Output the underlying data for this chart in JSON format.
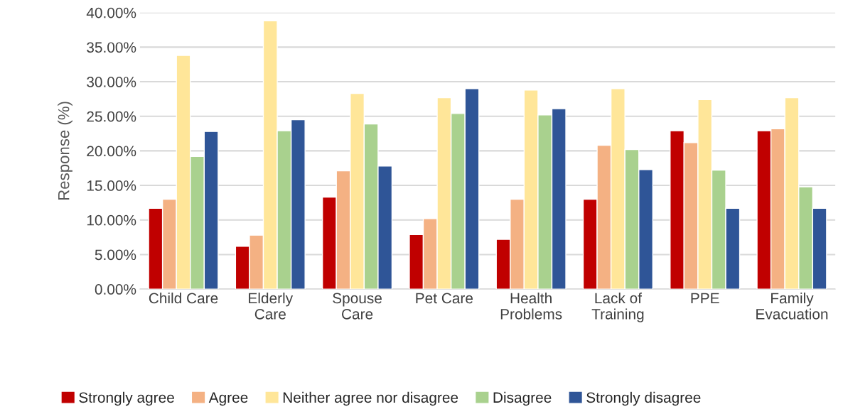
{
  "chart_data": {
    "type": "bar",
    "ylabel": "Response (%)",
    "categories": [
      "Child Care",
      "Elderly\nCare",
      "Spouse\nCare",
      "Pet Care",
      "Health\nProblems",
      "Lack of\nTraining",
      "PPE",
      "Family\nEvacuation"
    ],
    "series": [
      {
        "name": "Strongly agree",
        "color": "#c00000",
        "values": [
          11.7,
          6.2,
          13.3,
          7.9,
          7.2,
          13.0,
          22.9,
          22.9
        ]
      },
      {
        "name": "Agree",
        "color": "#f4b183",
        "values": [
          13.0,
          7.8,
          17.1,
          10.2,
          13.0,
          20.8,
          21.2,
          23.2
        ]
      },
      {
        "name": "Neither agree nor disagree",
        "color": "#ffe699",
        "values": [
          33.8,
          38.8,
          28.3,
          27.7,
          28.8,
          29.0,
          27.4,
          27.7
        ]
      },
      {
        "name": "Disagree",
        "color": "#a9d18e",
        "values": [
          19.2,
          22.9,
          23.9,
          25.4,
          25.2,
          20.2,
          17.2,
          14.8
        ]
      },
      {
        "name": "Strongly disagree",
        "color": "#2f5597",
        "values": [
          22.8,
          24.5,
          17.8,
          29.0,
          26.1,
          17.3,
          11.7,
          11.7
        ]
      }
    ],
    "ylim": [
      0,
      40
    ],
    "yticks": [
      {
        "value": 0,
        "label": "0.00%"
      },
      {
        "value": 5,
        "label": "5.00%"
      },
      {
        "value": 10,
        "label": "10.00%"
      },
      {
        "value": 15,
        "label": "15.00%"
      },
      {
        "value": 20,
        "label": "20.00%"
      },
      {
        "value": 25,
        "label": "25.00%"
      },
      {
        "value": 30,
        "label": "30.00%"
      },
      {
        "value": 35,
        "label": "35.00%"
      },
      {
        "value": 40,
        "label": "40.00%"
      }
    ],
    "grid": "y",
    "legend": "bottom"
  }
}
